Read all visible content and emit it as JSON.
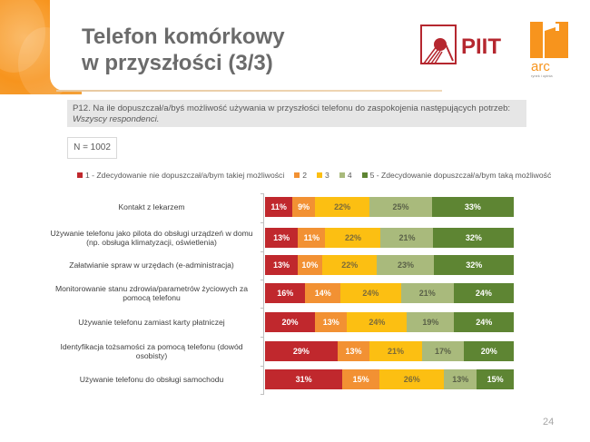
{
  "slide": {
    "title_line1": "Telefon komórkowy",
    "title_line2": "w przyszłości (3/3)",
    "logos": {
      "left": "PIIT",
      "right": "arc",
      "right_tagline": "rynek i opinia"
    },
    "question": "P12. Na ile dopuszczał/a/byś możliwość używania w przyszłości telefonu do zaspokojenia następujących potrzeb:",
    "respondents": "Wszyscy respondenci.",
    "sample_size": "N = 1002",
    "page_number": "24"
  },
  "chart_data": {
    "type": "bar",
    "orientation": "horizontal",
    "stacked": "percent",
    "title": "",
    "xlabel": "",
    "ylabel": "",
    "xlim": [
      0,
      100
    ],
    "grid": false,
    "legend_position": "top",
    "categories": [
      "Kontakt z lekarzem",
      "Używanie telefonu jako pilota do obsługi urządzeń w domu (np. obsługa klimatyzacji, oświetlenia)",
      "Załatwianie spraw w urzędach (e-administracja)",
      "Monitorowanie stanu zdrowia/parametrów życiowych za pomocą telefonu",
      "Używanie telefonu zamiast karty płatniczej",
      "Identyfikacja tożsamości za pomocą telefonu (dowód osobisty)",
      "Używanie telefonu do obsługi samochodu"
    ],
    "category_lines": [
      [
        "Kontakt z lekarzem"
      ],
      [
        "Używanie telefonu jako pilota do obsługi urządzeń w domu",
        "(np. obsługa klimatyzacji, oświetlenia)"
      ],
      [
        "Załatwianie spraw w urzędach (e-administracja)"
      ],
      [
        "Monitorowanie stanu zdrowia/parametrów życiowych za",
        "pomocą telefonu"
      ],
      [
        "Używanie telefonu zamiast karty płatniczej"
      ],
      [
        "Identyfikacja tożsamości za pomocą telefonu (dowód",
        "osobisty)"
      ],
      [
        "Używanie telefonu do obsługi samochodu"
      ]
    ],
    "series": [
      {
        "name": "1 - Zdecydowanie nie dopuszczał/a/bym takiej możliwości",
        "color": "#c0282d",
        "label_color": "#ffffff",
        "values": [
          11,
          13,
          13,
          16,
          20,
          29,
          31
        ]
      },
      {
        "name": "2",
        "color": "#f29133",
        "label_color": "#ffffff",
        "values": [
          9,
          11,
          10,
          14,
          13,
          13,
          15
        ]
      },
      {
        "name": "3",
        "color": "#fcbf12",
        "label_color": "#7a6a3a",
        "values": [
          22,
          22,
          22,
          24,
          24,
          21,
          26
        ]
      },
      {
        "name": "4",
        "color": "#a9ba7c",
        "label_color": "#5a6148",
        "values": [
          25,
          21,
          23,
          21,
          19,
          17,
          13
        ]
      },
      {
        "name": "5 - Zdecydowanie dopuszczał/a/bym taką możliwość",
        "color": "#5e8533",
        "label_color": "#ffffff",
        "values": [
          33,
          32,
          32,
          24,
          24,
          20,
          15
        ]
      }
    ]
  }
}
